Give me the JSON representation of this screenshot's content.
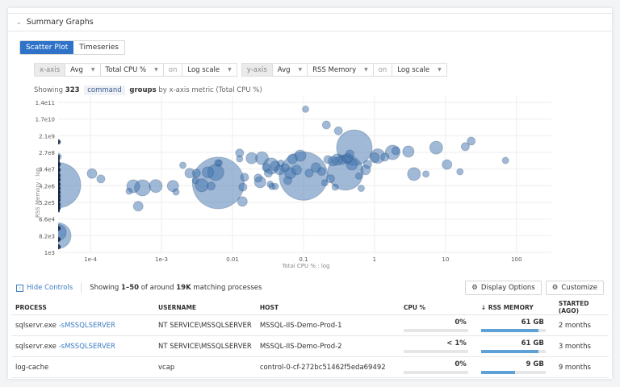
{
  "section": {
    "title": "Summary Graphs"
  },
  "view_tabs": [
    {
      "label": "Scatter Plot",
      "active": true
    },
    {
      "label": "Timeseries",
      "active": false
    }
  ],
  "x_axis_ctrl": {
    "label": "x-axis",
    "agg": "Avg",
    "metric": "Total CPU %",
    "on": "on",
    "scale": "Log scale"
  },
  "y_axis_ctrl": {
    "label": "y-axis",
    "agg": "Avg",
    "metric": "RSS Memory",
    "on": "on",
    "scale": "Log scale"
  },
  "summary": {
    "prefix": "Showing",
    "count": "323",
    "group_tag": "command",
    "groups": "groups",
    "suffix": "by x-axis metric (Total CPU %)"
  },
  "chart_data": {
    "type": "scatter",
    "xlabel": "Total CPU % : log",
    "ylabel": "RSS Memory : log",
    "x_scale": "log",
    "y_scale": "log",
    "xlim": [
      3.5e-05,
      310
    ],
    "ylim": [
      1000,
      140000000000
    ],
    "x_ticks": [
      {
        "v": 0.0001,
        "label": "1e-4"
      },
      {
        "v": 0.001,
        "label": "1e-3"
      },
      {
        "v": 0.01,
        "label": "0.01"
      },
      {
        "v": 0.1,
        "label": "0.1"
      },
      {
        "v": 1,
        "label": "1"
      },
      {
        "v": 10,
        "label": "10"
      },
      {
        "v": 100,
        "label": "100"
      }
    ],
    "y_ticks": [
      "1e3",
      "8.2e3",
      "6.6e4",
      "5.2e5",
      "4.2e6",
      "3.4e7",
      "2.7e8",
      "2.1e9",
      "1.7e10",
      "1.4e11"
    ],
    "color": "#3f74ad",
    "points_cpu_mem_size": [
      [
        0,
        4500000,
        28
      ],
      [
        0,
        8000,
        16
      ],
      [
        0,
        12000,
        10
      ],
      [
        0,
        160000000,
        4
      ],
      [
        0,
        60000000,
        3
      ],
      [
        0,
        30000000,
        3
      ],
      [
        0,
        15000000,
        3
      ],
      [
        0,
        9000000,
        3
      ],
      [
        0,
        5000000,
        3
      ],
      [
        0,
        3000000,
        3
      ],
      [
        0,
        1800000,
        3
      ],
      [
        0,
        1100000,
        3
      ],
      [
        0,
        700000,
        3
      ],
      [
        0,
        400000,
        3
      ],
      [
        0,
        250000,
        3
      ],
      [
        0,
        20000,
        3
      ],
      [
        0,
        5000,
        3
      ],
      [
        0,
        2000,
        3
      ],
      [
        0,
        1000000000,
        3
      ],
      [
        0.000105,
        19000000,
        6
      ],
      [
        0.00014,
        9800000,
        5
      ],
      [
        0.0004,
        3900000,
        8
      ],
      [
        0.00054,
        3200000,
        10
      ],
      [
        0.00035,
        2100000,
        4
      ],
      [
        0.00047,
        320000,
        6
      ],
      [
        0.00083,
        4000000,
        8
      ],
      [
        0.00145,
        4000000,
        7
      ],
      [
        0.0016,
        1900000,
        4
      ],
      [
        0.002,
        54000000,
        4
      ],
      [
        0.0025,
        20000000,
        6
      ],
      [
        0.0031,
        20000000,
        5
      ],
      [
        0.003,
        7900000,
        4
      ],
      [
        0.0037,
        4400000,
        8
      ],
      [
        0.0063,
        5900000,
        32
      ],
      [
        0.0058,
        22000000,
        10
      ],
      [
        0.0065,
        72000000,
        4
      ],
      [
        0.0062,
        72000000,
        4
      ],
      [
        0.0045,
        22000000,
        7
      ],
      [
        0.005,
        4000000,
        5
      ],
      [
        0.014,
        3500000,
        5
      ],
      [
        0.0138,
        580000,
        6
      ],
      [
        0.0148,
        12000000,
        5
      ],
      [
        0.0126,
        250000000,
        5
      ],
      [
        0.0126,
        120000000,
        4
      ],
      [
        0.0186,
        130000000,
        7
      ],
      [
        0.026,
        130000000,
        8
      ],
      [
        0.023,
        11000000,
        5
      ],
      [
        0.0245,
        6500000,
        7
      ],
      [
        0.035,
        49000000,
        10
      ],
      [
        0.03,
        40000000,
        5
      ],
      [
        0.04,
        49000000,
        6
      ],
      [
        0.046,
        30000000,
        6
      ],
      [
        0.032,
        20000000,
        5
      ],
      [
        0.034,
        5000000,
        4
      ],
      [
        0.036,
        3800000,
        4
      ],
      [
        0.04,
        3800000,
        4
      ],
      [
        0.055,
        40000000,
        5
      ],
      [
        0.048,
        70000000,
        4
      ],
      [
        0.1,
        14000000,
        30
      ],
      [
        0.09,
        180000000,
        7
      ],
      [
        0.107,
        60000000000,
        4
      ],
      [
        0.07,
        120000000,
        6
      ],
      [
        0.08,
        30000000,
        6
      ],
      [
        0.12,
        20000000,
        5
      ],
      [
        0.15,
        40000000,
        6
      ],
      [
        0.06,
        8000000,
        5
      ],
      [
        0.065,
        20000000,
        7
      ],
      [
        0.18,
        25000000,
        5
      ],
      [
        0.21,
        8300000000,
        5
      ],
      [
        0.31,
        4000000000,
        5
      ],
      [
        0.52,
        490000000,
        22
      ],
      [
        0.22,
        110000000,
        5
      ],
      [
        0.42,
        130000000,
        6
      ],
      [
        0.26,
        90000000,
        6
      ],
      [
        0.3,
        110000000,
        7
      ],
      [
        0.35,
        100000000,
        5
      ],
      [
        0.39,
        22000000,
        22
      ],
      [
        0.45,
        220000000,
        5
      ],
      [
        0.6,
        14000000,
        4
      ],
      [
        0.65,
        3000000,
        4
      ],
      [
        0.28,
        3500000,
        4
      ],
      [
        0.2,
        6000000,
        4
      ],
      [
        0.24,
        10000000,
        5
      ],
      [
        0.48,
        60000000,
        7
      ],
      [
        1.0,
        140000000,
        6
      ],
      [
        1.11,
        170000000,
        9
      ],
      [
        1.8,
        270000000,
        9
      ],
      [
        3.0,
        300000000,
        7
      ],
      [
        7.4,
        490000000,
        8
      ],
      [
        10.5,
        59000000,
        6
      ],
      [
        3.6,
        18000000,
        8
      ],
      [
        5.3,
        18000000,
        4
      ],
      [
        16,
        24000000,
        4
      ],
      [
        19,
        550000000,
        5
      ],
      [
        23,
        1100000000,
        5
      ],
      [
        70,
        98000000,
        4
      ],
      [
        0.75,
        30000000,
        6
      ],
      [
        0.8,
        60000000,
        5
      ],
      [
        1.4,
        150000000,
        5
      ],
      [
        2.0,
        330000000,
        5
      ]
    ]
  },
  "controls_bar": {
    "hide_controls": "Hide Controls",
    "showing_prefix": "Showing",
    "range": "1–50",
    "of": "of around",
    "total": "19K",
    "suffix": "matching processes",
    "display_options": "Display Options",
    "customize": "Customize"
  },
  "table": {
    "headers": {
      "process": "PROCESS",
      "username": "USERNAME",
      "host": "HOST",
      "cpu": "CPU %",
      "rss": "RSS MEMORY",
      "started": "STARTED (AGO)"
    },
    "rows": [
      {
        "process": "sqlservr.exe",
        "args": "-sMSSQLSERVER",
        "username": "NT SERVICE\\MSSQLSERVER",
        "host": "MSSQL-IIS-Demo-Prod-1",
        "cpu": "0%",
        "cpu_fraction": 0,
        "rss": "61 GB",
        "rss_fraction": 0.89,
        "started": "2 months"
      },
      {
        "process": "sqlservr.exe",
        "args": "-sMSSQLSERVER",
        "username": "NT SERVICE\\MSSQLSERVER",
        "host": "MSSQL-IIS-Demo-Prod-2",
        "cpu": "< 1%",
        "cpu_fraction": 0,
        "rss": "61 GB",
        "rss_fraction": 0.89,
        "started": "3 months"
      },
      {
        "process": "log-cache",
        "args": "",
        "username": "vcap",
        "host": "control-0-cf-272bc51462f5eda69492",
        "cpu": "0%",
        "cpu_fraction": 0,
        "rss": "9 GB",
        "rss_fraction": 0.53,
        "started": "9 months"
      }
    ]
  }
}
